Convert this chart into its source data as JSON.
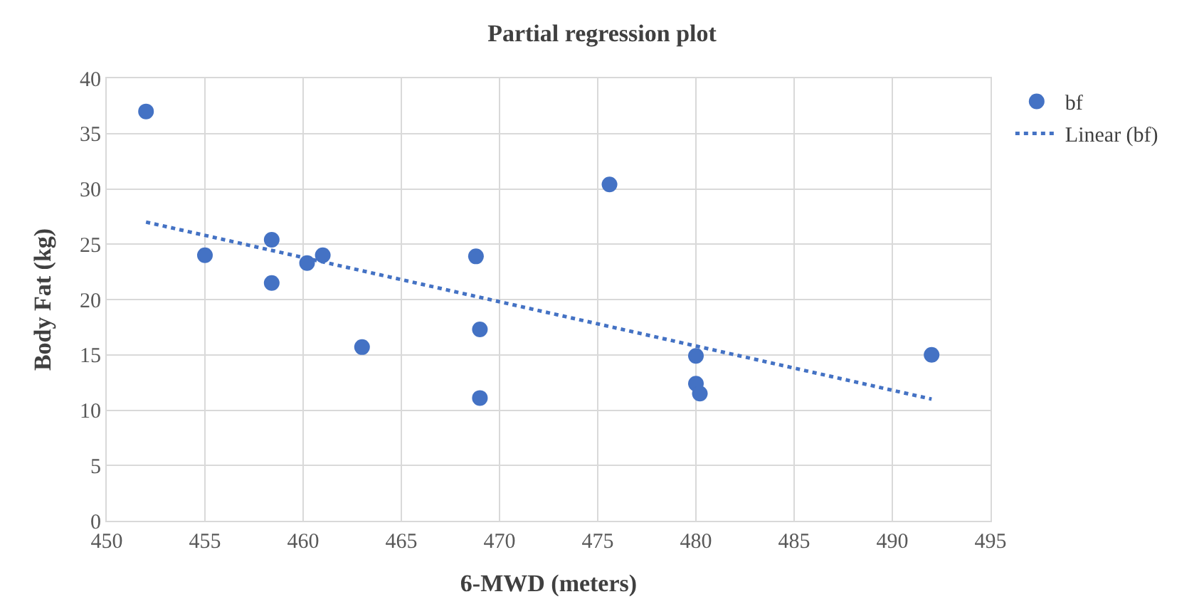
{
  "chart_data": {
    "type": "scatter",
    "title": "Partial regression plot",
    "xlabel": "6-MWD (meters)",
    "ylabel": "Body Fat (kg)",
    "series": [
      {
        "name": "bf",
        "color": "#4472c4",
        "marker": "circle",
        "x": [
          452,
          455,
          458.4,
          458.4,
          460.2,
          461,
          463,
          468.8,
          469,
          469,
          475.6,
          480,
          480,
          480.2,
          492
        ],
        "values": [
          37,
          24,
          25.4,
          21.5,
          23.3,
          24,
          15.7,
          23.9,
          17.3,
          11.1,
          30.4,
          14.9,
          12.4,
          11.5,
          15
        ]
      },
      {
        "name": "Linear (bf)",
        "type": "line",
        "color": "#4472c4",
        "line_style": "dotted",
        "marker": "none",
        "x": [
          452,
          492
        ],
        "values": [
          27,
          11
        ]
      }
    ],
    "xlim": [
      450,
      495
    ],
    "xticks": [
      450,
      455,
      460,
      465,
      470,
      475,
      480,
      485,
      490,
      495
    ],
    "ylim": [
      0,
      40
    ],
    "yticks": [
      0,
      5,
      10,
      15,
      20,
      25,
      30,
      35,
      40
    ],
    "grid": true,
    "legend": "top right"
  }
}
